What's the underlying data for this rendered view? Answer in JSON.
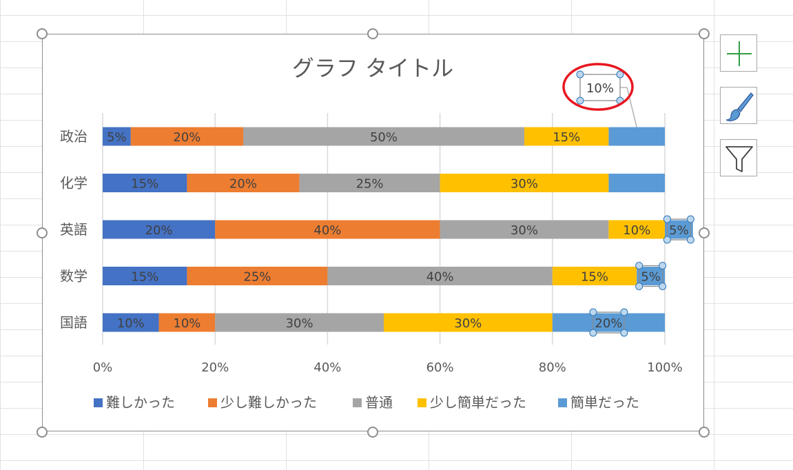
{
  "chart_data": {
    "type": "bar",
    "orientation": "horizontal",
    "stacked": "percent",
    "title": "グラフ タイトル",
    "categories": [
      "政治",
      "化学",
      "英語",
      "数学",
      "国語"
    ],
    "series": [
      {
        "name": "難しかった",
        "color": "#4472C4",
        "values": [
          5,
          15,
          20,
          15,
          10
        ]
      },
      {
        "name": "少し難しかった",
        "color": "#ED7D31",
        "values": [
          20,
          20,
          40,
          25,
          10
        ]
      },
      {
        "name": "普通",
        "color": "#A5A5A5",
        "values": [
          50,
          25,
          30,
          40,
          30
        ]
      },
      {
        "name": "少し簡単だった",
        "color": "#FFC000",
        "values": [
          15,
          30,
          10,
          15,
          30
        ]
      },
      {
        "name": "簡単だった",
        "color": "#5B9BD5",
        "values": [
          10,
          10,
          5,
          5,
          20
        ]
      }
    ],
    "data_label_format": "{v}%",
    "hidden_labels": [
      [
        0,
        4
      ],
      [
        1,
        4
      ]
    ],
    "callout_label": {
      "text": "10%",
      "category": 0,
      "series": 4
    },
    "selected_labels": [
      [
        2,
        4
      ],
      [
        3,
        4
      ],
      [
        4,
        4
      ]
    ],
    "xaxis": {
      "ticks": [
        "0%",
        "20%",
        "40%",
        "60%",
        "80%",
        "100%"
      ],
      "range": [
        0,
        100
      ]
    },
    "grid": true,
    "legend_position": "bottom"
  },
  "side_buttons": [
    {
      "name": "chart-elements-button",
      "icon": "plus-icon"
    },
    {
      "name": "chart-styles-button",
      "icon": "paintbrush-icon"
    },
    {
      "name": "chart-filters-button",
      "icon": "funnel-icon"
    }
  ]
}
